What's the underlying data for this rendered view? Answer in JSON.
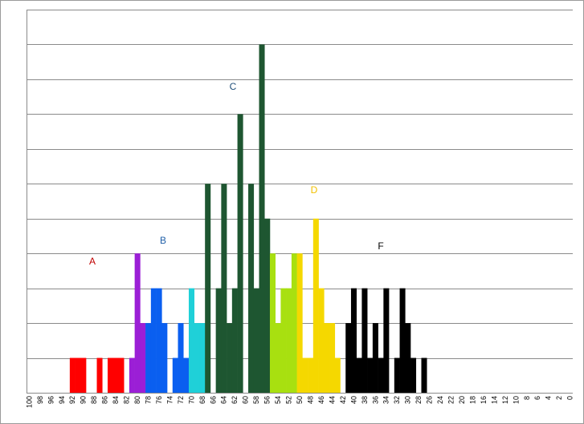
{
  "chart_data": {
    "type": "bar",
    "categories": [
      "100",
      null,
      "98",
      null,
      "96",
      null,
      "94",
      null,
      "92",
      null,
      "90",
      null,
      "88",
      null,
      "86",
      null,
      "84",
      null,
      "82",
      null,
      "80",
      null,
      "78",
      null,
      "76",
      null,
      "74",
      null,
      "72",
      null,
      "70",
      null,
      "68",
      null,
      "66",
      null,
      "64",
      null,
      "62",
      null,
      "60",
      null,
      "58",
      null,
      "56",
      null,
      "54",
      null,
      "52",
      null,
      "50",
      null,
      "48",
      null,
      "46",
      null,
      "44",
      null,
      "42",
      null,
      "40",
      null,
      "38",
      null,
      "36",
      null,
      "34",
      null,
      "32",
      null,
      "30",
      null,
      "28",
      null,
      "26",
      null,
      "24",
      null,
      "22",
      null,
      "20",
      null,
      "18",
      null,
      "16",
      null,
      "14",
      null,
      "12",
      null,
      "10",
      null,
      "8",
      null,
      "6",
      null,
      "4",
      null,
      "2",
      null,
      "0"
    ],
    "values": [
      0,
      0,
      0,
      0,
      0,
      0,
      0,
      0,
      1,
      1,
      1,
      0,
      0,
      1,
      0,
      1,
      1,
      1,
      0,
      1,
      4,
      2,
      2,
      3,
      3,
      2,
      0,
      1,
      2,
      1,
      3,
      2,
      2,
      6,
      0,
      3,
      6,
      2,
      3,
      8,
      0,
      6,
      3,
      10,
      5,
      4,
      2,
      3,
      3,
      4,
      4,
      1,
      1,
      5,
      3,
      2,
      2,
      1,
      0,
      2,
      3,
      1,
      3,
      1,
      2,
      1,
      3,
      0,
      1,
      3,
      2,
      1,
      0,
      1,
      0,
      0,
      0,
      0,
      0,
      0,
      0,
      0,
      0,
      0,
      0,
      0,
      0,
      0,
      0,
      0,
      0,
      0,
      0,
      0,
      0,
      0,
      0,
      0,
      0,
      0,
      0
    ],
    "colors": [
      "#ff0000",
      "#ff0000",
      "#ff0000",
      "#ff0000",
      "#ff0000",
      "#ff0000",
      "#ff0000",
      "#ff0000",
      "#ff0000",
      "#ff0000",
      "#ff0000",
      "#ff0000",
      "#ff0000",
      "#ff0000",
      "#ff0000",
      "#ff0000",
      "#ff0000",
      "#ff0000",
      "#ff0000",
      "#9b1fd6",
      "#9b1fd6",
      "#9b1fd6",
      "#0a5ff0",
      "#0a5ff0",
      "#0a5ff0",
      "#0a5ff0",
      "#0a5ff0",
      "#0a5ff0",
      "#0a5ff0",
      "#0a5ff0",
      "#1fd0d8",
      "#1fd0d8",
      "#1fd0d8",
      "#1e5631",
      "#1e5631",
      "#1e5631",
      "#1e5631",
      "#1e5631",
      "#1e5631",
      "#1e5631",
      "#1e5631",
      "#1e5631",
      "#1e5631",
      "#1e5631",
      "#1e5631",
      "#a8e010",
      "#a8e010",
      "#a8e010",
      "#a8e010",
      "#a8e010",
      "#f5d800",
      "#f5d800",
      "#f5d800",
      "#f5d800",
      "#f5d800",
      "#f5d800",
      "#f5d800",
      "#f5d800",
      "#000000",
      "#000000",
      "#000000",
      "#000000",
      "#000000",
      "#000000",
      "#000000",
      "#000000",
      "#000000",
      "#000000",
      "#000000",
      "#000000",
      "#000000",
      "#000000",
      "#000000",
      "#000000",
      "#000000",
      "#000000",
      "#000000",
      "#000000",
      "#000000",
      "#000000",
      "#000000",
      "#000000",
      "#000000",
      "#000000",
      "#000000",
      "#000000",
      "#000000",
      "#000000",
      "#000000",
      "#000000",
      "#000000",
      "#000000",
      "#000000",
      "#000000",
      "#000000",
      "#000000",
      "#000000",
      "#000000",
      "#000000",
      "#000000",
      "#000000"
    ],
    "ylim": [
      0,
      11
    ],
    "yticks": [
      0,
      1,
      2,
      3,
      4,
      5,
      6,
      7,
      8,
      9,
      10,
      11
    ],
    "grid": true,
    "annotations": [
      {
        "text": "A",
        "color": "#c00000"
      },
      {
        "text": "B",
        "color": "#1f5fa8"
      },
      {
        "text": "C",
        "color": "#1f4e79"
      },
      {
        "text": "D",
        "color": "#f2c100"
      },
      {
        "text": "F",
        "color": "#000000"
      }
    ]
  }
}
